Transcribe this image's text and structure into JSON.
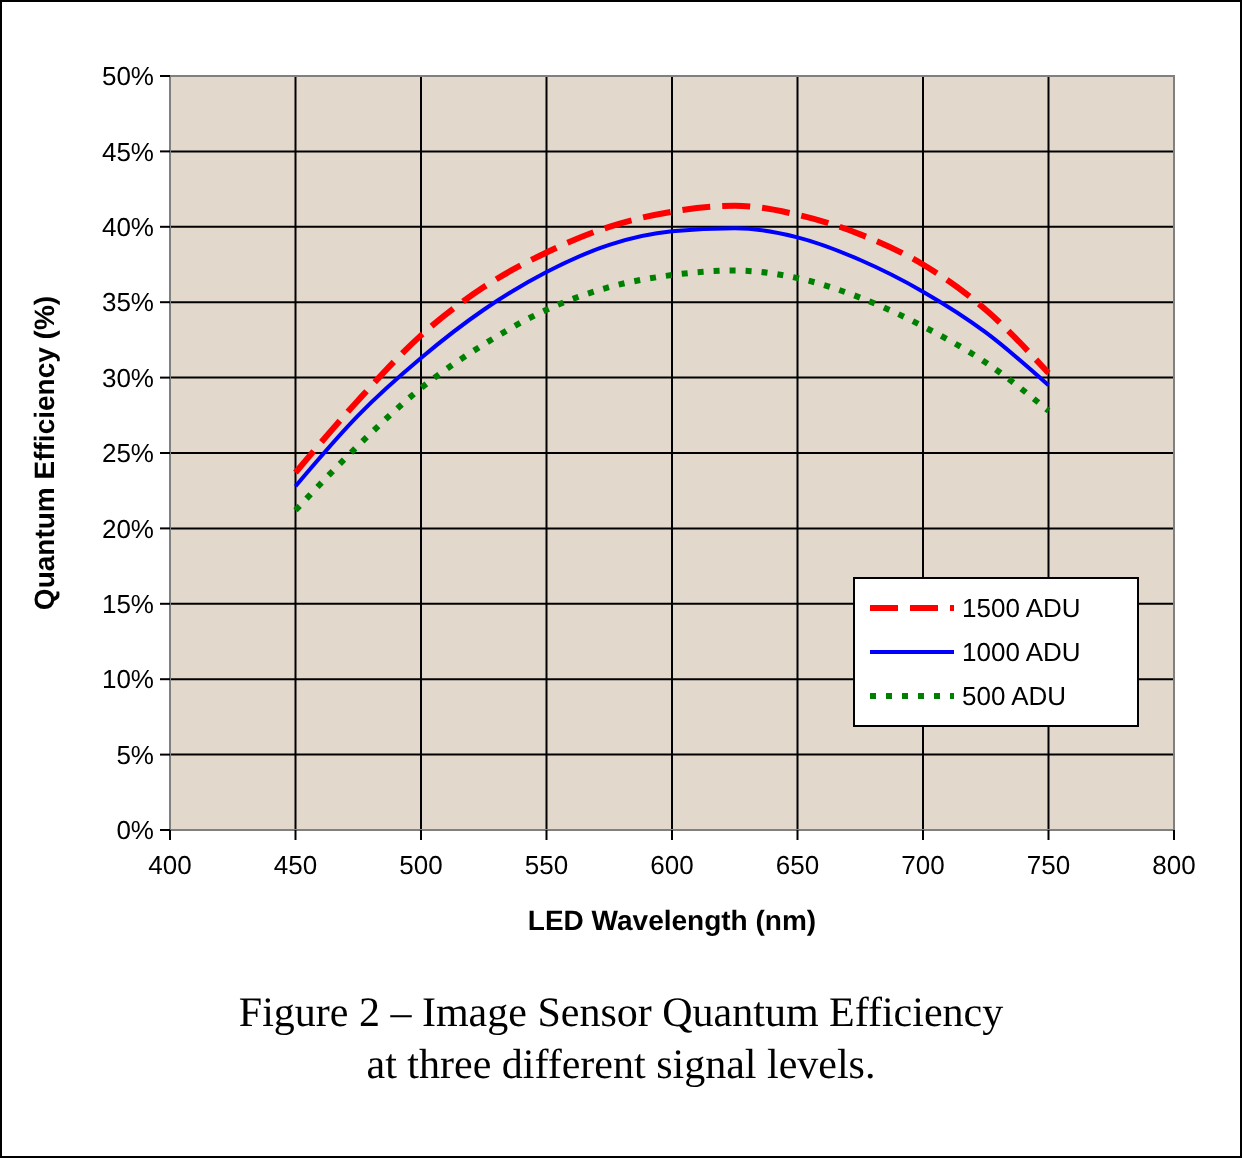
{
  "chart_data": {
    "type": "line",
    "xlabel": "LED Wavelength (nm)",
    "ylabel": "Quantum Efficiency (%)",
    "x": [
      450,
      475,
      500,
      525,
      550,
      575,
      600,
      625,
      650,
      675,
      700,
      725,
      750
    ],
    "series": [
      {
        "name": "1500 ADU",
        "color": "#ff0000",
        "line_style": "dashed",
        "values": [
          23.7,
          28.5,
          32.8,
          36,
          38.3,
          40,
          41,
          41.4,
          40.8,
          39.5,
          37.5,
          34.5,
          30.3
        ]
      },
      {
        "name": "1000 ADU",
        "color": "#0000ff",
        "line_style": "solid",
        "values": [
          22.8,
          27.5,
          31.3,
          34.5,
          37,
          38.8,
          39.7,
          39.9,
          39.3,
          37.8,
          35.7,
          33,
          29.5
        ]
      },
      {
        "name": "500 ADU",
        "color": "#008000",
        "line_style": "dotted",
        "values": [
          21.2,
          25.5,
          29.3,
          32.2,
          34.5,
          36,
          36.8,
          37.1,
          36.6,
          35.3,
          33.4,
          31,
          27.8
        ]
      }
    ],
    "xlim": [
      400,
      800
    ],
    "xticks": [
      400,
      450,
      500,
      550,
      600,
      650,
      700,
      750,
      800
    ],
    "ylim": [
      0,
      50
    ],
    "yticks": [
      {
        "value": 0,
        "label": "0%"
      },
      {
        "value": 5,
        "label": "5%"
      },
      {
        "value": 10,
        "label": "10%"
      },
      {
        "value": 15,
        "label": "15%"
      },
      {
        "value": 20,
        "label": "20%"
      },
      {
        "value": 25,
        "label": "25%"
      },
      {
        "value": 30,
        "label": "30%"
      },
      {
        "value": 35,
        "label": "35%"
      },
      {
        "value": 40,
        "label": "40%"
      },
      {
        "value": 45,
        "label": "45%"
      },
      {
        "value": 50,
        "label": "50%"
      }
    ],
    "grid": true,
    "legend": "right",
    "annotations": [
      "Figure 2 – Image Sensor Quantum Efficiency at three different signal levels."
    ]
  }
}
